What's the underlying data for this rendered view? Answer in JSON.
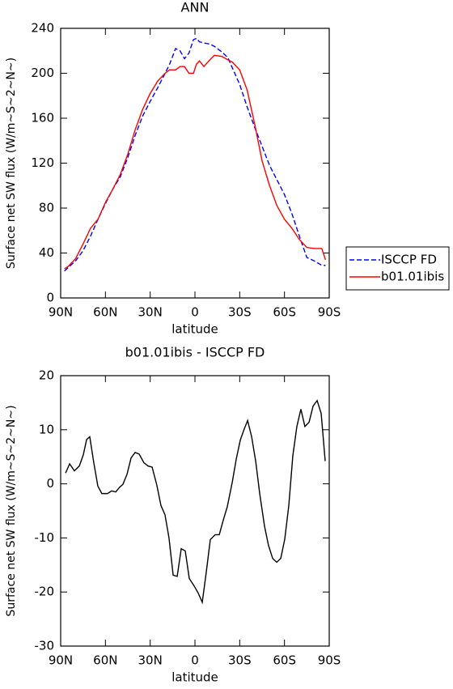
{
  "chart_data": [
    {
      "type": "line",
      "title": "ANN",
      "xlabel": "latitude",
      "ylabel": "Surface net SW flux (W/m~S~2~N~)",
      "xlim": [
        90,
        -90
      ],
      "xticks": [
        {
          "value": 90,
          "label": "90N"
        },
        {
          "value": 60,
          "label": "60N"
        },
        {
          "value": 30,
          "label": "30N"
        },
        0,
        {
          "value": -30,
          "label": "30S"
        },
        {
          "value": -60,
          "label": "60S"
        },
        {
          "value": -90,
          "label": "90S"
        }
      ],
      "ylim": [
        0,
        240
      ],
      "yticks": [
        0,
        40,
        80,
        120,
        160,
        200,
        240
      ],
      "legend": "right",
      "x": [
        87.5,
        85,
        80,
        75,
        70,
        65,
        60,
        55,
        50,
        45,
        40,
        35,
        30,
        25,
        20,
        17,
        13,
        10,
        7,
        4,
        1,
        -1,
        -3,
        -6,
        -10,
        -13,
        -18,
        -22,
        -25,
        -30,
        -35,
        -40,
        -45,
        -50,
        -55,
        -60,
        -65,
        -70,
        -75,
        -80,
        -85,
        -87.5
      ],
      "series": [
        {
          "name": "ISCCP FD",
          "color": "#0000ff",
          "style": "dashed",
          "values": [
            24,
            27,
            33,
            42,
            55,
            70,
            84,
            97,
            108,
            125,
            145,
            162,
            175,
            187,
            200,
            208,
            222,
            220,
            213,
            218,
            230,
            231,
            228,
            227,
            226,
            224,
            219,
            214,
            205,
            190,
            170,
            152,
            135,
            118,
            105,
            92,
            75,
            55,
            36,
            33,
            29,
            29
          ]
        },
        {
          "name": "b01.01ibis",
          "color": "#ff0000",
          "style": "solid",
          "values": [
            26,
            28,
            35,
            48,
            62,
            70,
            85,
            97,
            110,
            128,
            150,
            168,
            182,
            193,
            200,
            203,
            203,
            206,
            206,
            200,
            200,
            208,
            211,
            206,
            212,
            216,
            215,
            212,
            210,
            203,
            185,
            155,
            122,
            100,
            82,
            70,
            62,
            52,
            45,
            44,
            44,
            34
          ]
        }
      ]
    },
    {
      "type": "line",
      "title": "b01.01ibis - ISCCP FD",
      "xlabel": "latitude",
      "ylabel": "Surface net SW flux (W/m~S~2~N~)",
      "xlim": [
        90,
        -90
      ],
      "xticks": [
        {
          "value": 90,
          "label": "90N"
        },
        {
          "value": 60,
          "label": "60N"
        },
        {
          "value": 30,
          "label": "30N"
        },
        0,
        {
          "value": -30,
          "label": "30S"
        },
        {
          "value": -60,
          "label": "60S"
        },
        {
          "value": -90,
          "label": "90S"
        }
      ],
      "ylim": [
        -30,
        20
      ],
      "yticks": [
        -30,
        -20,
        -10,
        0,
        10,
        20
      ],
      "color": "#000000",
      "x": [
        86.7,
        84.0,
        80.8,
        77.5,
        74.8,
        72.6,
        70.5,
        67.8,
        65.1,
        62.4,
        58.6,
        55.8,
        53.1,
        50.4,
        48.3,
        45.5,
        42.8,
        40.1,
        37.4,
        34.2,
        31.4,
        28.7,
        25.5,
        22.8,
        20.1,
        17.4,
        14.6,
        11.9,
        9.2,
        6.5,
        3.8,
        0.5,
        -2.2,
        -4.9,
        -7.6,
        -10.3,
        -13.6,
        -16.3,
        -19.0,
        -21.7,
        -25.0,
        -27.7,
        -30.4,
        -33.1,
        -35.3,
        -38.0,
        -40.7,
        -43.4,
        -46.6,
        -49.3,
        -52.1,
        -54.8,
        -57.5,
        -60.2,
        -62.9,
        -65.6,
        -68.3,
        -71.0,
        -73.7,
        -76.5,
        -79.2,
        -81.9,
        -84.6,
        -87.3
      ],
      "values": [
        2.0,
        3.7,
        2.4,
        3.3,
        5.4,
        8.2,
        8.7,
        3.9,
        -0.4,
        -1.8,
        -1.8,
        -1.3,
        -1.5,
        -0.6,
        -0.1,
        1.8,
        4.8,
        5.8,
        5.5,
        3.9,
        3.3,
        3.1,
        -0.3,
        -4,
        -5.7,
        -10,
        -16.9,
        -17.1,
        -12,
        -12.4,
        -17.5,
        -18.9,
        -20.2,
        -21.9,
        -16.3,
        -10.3,
        -9.4,
        -9.4,
        -6.7,
        -4.2,
        0.3,
        4.6,
        8.1,
        10.2,
        11.7,
        8.7,
        4.2,
        -1.8,
        -7.8,
        -11.4,
        -13.8,
        -14.5,
        -13.8,
        -10.2,
        -4,
        5.2,
        10.6,
        13.8,
        10.6,
        11.4,
        14.4,
        15.4,
        13,
        4.2
      ]
    }
  ]
}
